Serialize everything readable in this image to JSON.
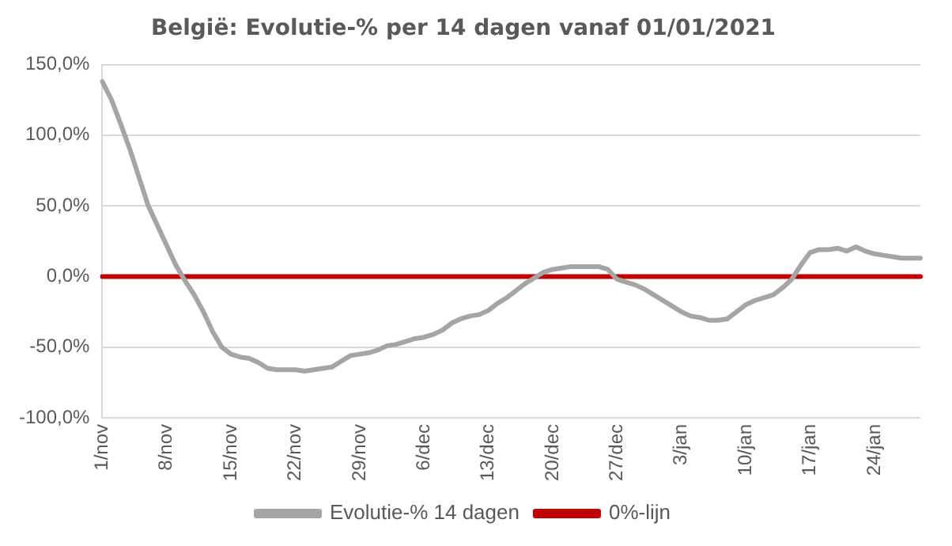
{
  "chart_data": {
    "type": "line",
    "title": "België: Evolutie-% per 14 dagen vanaf 01/01/2021",
    "categories": [
      "1/nov",
      null,
      null,
      null,
      null,
      null,
      null,
      "8/nov",
      null,
      null,
      null,
      null,
      null,
      null,
      "15/nov",
      null,
      null,
      null,
      null,
      null,
      null,
      "22/nov",
      null,
      null,
      null,
      null,
      null,
      null,
      "29/nov",
      null,
      null,
      null,
      null,
      null,
      null,
      "6/dec",
      null,
      null,
      null,
      null,
      null,
      null,
      "13/dec",
      null,
      null,
      null,
      null,
      null,
      null,
      "20/dec",
      null,
      null,
      null,
      null,
      null,
      null,
      "27/dec",
      null,
      null,
      null,
      null,
      null,
      null,
      "3/jan",
      null,
      null,
      null,
      null,
      null,
      null,
      "10/jan",
      null,
      null,
      null,
      null,
      null,
      null,
      "17/jan",
      null,
      null,
      null,
      null,
      null,
      null,
      "24/jan",
      null,
      null,
      null,
      null,
      null
    ],
    "series": [
      {
        "name": "0%-lijn",
        "color": "#c00000",
        "values": [
          0,
          0,
          0,
          0,
          0,
          0,
          0,
          0,
          0,
          0,
          0,
          0,
          0,
          0,
          0,
          0,
          0,
          0,
          0,
          0,
          0,
          0,
          0,
          0,
          0,
          0,
          0,
          0,
          0,
          0,
          0,
          0,
          0,
          0,
          0,
          0,
          0,
          0,
          0,
          0,
          0,
          0,
          0,
          0,
          0,
          0,
          0,
          0,
          0,
          0,
          0,
          0,
          0,
          0,
          0,
          0,
          0,
          0,
          0,
          0,
          0,
          0,
          0,
          0,
          0,
          0,
          0,
          0,
          0,
          0,
          0,
          0,
          0,
          0,
          0,
          0,
          0,
          0,
          0,
          0,
          0,
          0,
          0,
          0,
          0,
          0,
          0,
          0,
          0,
          0
        ]
      },
      {
        "name": "Evolutie-% 14 dagen",
        "color": "#a5a5a5",
        "values": [
          138,
          125,
          108,
          90,
          70,
          50,
          36,
          22,
          8,
          -3,
          -13,
          -25,
          -39,
          -50,
          -55,
          -57,
          -58,
          -61,
          -65,
          -66,
          -66,
          -66,
          -67,
          -66,
          -65,
          -64,
          -60,
          -56,
          -55,
          -54,
          -52,
          -49,
          -48,
          -46,
          -44,
          -43,
          -41,
          -38,
          -33,
          -30,
          -28,
          -27,
          -24,
          -19,
          -15,
          -10,
          -5,
          -1,
          3,
          5,
          6,
          7,
          7,
          7,
          7,
          5,
          -2,
          -4,
          -6,
          -9,
          -13,
          -17,
          -21,
          -25,
          -28,
          -29,
          -31,
          -31,
          -30,
          -25,
          -20,
          -17,
          -15,
          -13,
          -8,
          -2,
          8,
          17,
          19,
          19,
          20,
          18,
          21,
          18,
          16,
          15,
          14,
          13,
          13,
          13
        ]
      }
    ],
    "ylim": [
      -100,
      150
    ],
    "yticks": [
      {
        "value": -100,
        "label": "-100,0%"
      },
      {
        "value": -50,
        "label": "-50,0%"
      },
      {
        "value": 0,
        "label": "0,0%"
      },
      {
        "value": 50,
        "label": "50,0%"
      },
      {
        "value": 100,
        "label": "100,0%"
      },
      {
        "value": 150,
        "label": "150,0%"
      }
    ],
    "grid": "y",
    "legend": "bottom",
    "marker": "none",
    "line_style": "solid"
  }
}
